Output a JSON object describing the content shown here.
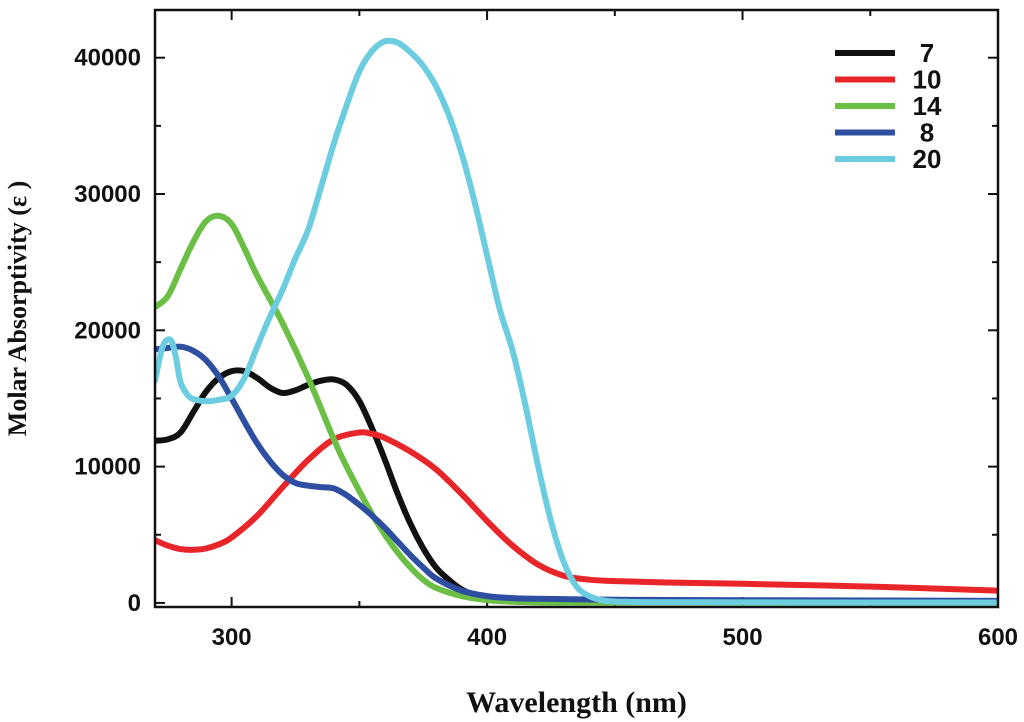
{
  "chart_data": {
    "type": "line",
    "title": "",
    "xlabel": "Wavelength (nm)",
    "ylabel": "Molar Absorptivity (ε )",
    "xlim": [
      270,
      600
    ],
    "ylim": [
      -300,
      43500
    ],
    "x_ticks": [
      300,
      400,
      500,
      600
    ],
    "x_tick_labels": [
      "300",
      "400",
      "500",
      "600"
    ],
    "y_ticks": [
      0,
      10000,
      20000,
      30000,
      40000
    ],
    "y_tick_labels": [
      "0",
      "10000",
      "20000",
      "30000",
      "40000"
    ],
    "legend_position": "top-right",
    "series": [
      {
        "name": "7",
        "color": "#111111",
        "x": [
          270,
          275,
          280,
          285,
          290,
          295,
          300,
          305,
          310,
          315,
          320,
          325,
          330,
          335,
          340,
          345,
          350,
          355,
          360,
          365,
          370,
          375,
          380,
          385,
          390,
          395,
          400,
          410,
          420,
          440,
          460,
          500,
          550,
          600
        ],
        "y": [
          11900,
          12000,
          12500,
          14000,
          15500,
          16500,
          17000,
          17000,
          16500,
          15800,
          15400,
          15600,
          16000,
          16300,
          16400,
          16000,
          14800,
          12800,
          10500,
          8000,
          5800,
          4000,
          2600,
          1700,
          1000,
          600,
          400,
          200,
          120,
          80,
          60,
          40,
          30,
          30
        ]
      },
      {
        "name": "10",
        "color": "#e8262a",
        "x": [
          270,
          275,
          280,
          285,
          290,
          295,
          300,
          310,
          320,
          330,
          340,
          350,
          355,
          360,
          370,
          380,
          390,
          400,
          410,
          420,
          430,
          440,
          450,
          470,
          500,
          550,
          600
        ],
        "y": [
          4600,
          4200,
          3950,
          3900,
          4000,
          4300,
          4800,
          6400,
          8500,
          10500,
          12000,
          12500,
          12400,
          12100,
          11100,
          9800,
          8000,
          6000,
          4200,
          2800,
          2000,
          1700,
          1600,
          1500,
          1400,
          1200,
          900
        ]
      },
      {
        "name": "14",
        "color": "#6bbf45",
        "x": [
          270,
          275,
          280,
          285,
          290,
          295,
          300,
          305,
          310,
          320,
          330,
          340,
          345,
          350,
          355,
          360,
          365,
          370,
          375,
          380,
          390,
          400,
          410,
          420,
          440,
          500,
          600
        ],
        "y": [
          21700,
          22500,
          24500,
          26500,
          28000,
          28400,
          27800,
          26000,
          24000,
          20500,
          16500,
          12000,
          10000,
          8200,
          6500,
          5000,
          3700,
          2600,
          1700,
          1100,
          500,
          200,
          80,
          40,
          20,
          10,
          10
        ]
      },
      {
        "name": "8",
        "color": "#2e4ea2",
        "x": [
          270,
          275,
          280,
          285,
          290,
          295,
          300,
          305,
          310,
          315,
          320,
          325,
          330,
          335,
          340,
          345,
          350,
          355,
          360,
          365,
          370,
          375,
          380,
          390,
          400,
          410,
          420,
          440,
          460,
          500,
          550,
          600
        ],
        "y": [
          18600,
          18700,
          18800,
          18500,
          17800,
          16600,
          15000,
          13300,
          11700,
          10400,
          9400,
          8800,
          8600,
          8500,
          8400,
          7900,
          7200,
          6400,
          5500,
          4500,
          3500,
          2600,
          1800,
          900,
          500,
          350,
          300,
          250,
          220,
          200,
          180,
          150
        ]
      },
      {
        "name": "20",
        "color": "#6ccde0",
        "x": [
          270,
          273,
          276,
          278,
          280,
          283,
          286,
          290,
          295,
          300,
          305,
          310,
          315,
          320,
          325,
          330,
          335,
          340,
          345,
          350,
          355,
          360,
          365,
          370,
          375,
          380,
          385,
          390,
          395,
          400,
          405,
          410,
          415,
          420,
          425,
          430,
          435,
          440,
          445,
          450,
          455,
          460,
          480,
          500,
          550,
          600
        ],
        "y": [
          16300,
          18800,
          19300,
          18200,
          16200,
          15200,
          14900,
          14800,
          14900,
          15200,
          16500,
          18800,
          21000,
          23000,
          25300,
          27400,
          30500,
          33700,
          36500,
          39000,
          40500,
          41200,
          41100,
          40400,
          39400,
          37900,
          35800,
          33000,
          29500,
          25500,
          21500,
          18500,
          14500,
          10000,
          6000,
          3000,
          1200,
          500,
          200,
          100,
          80,
          60,
          50,
          40,
          30,
          30
        ]
      }
    ]
  }
}
